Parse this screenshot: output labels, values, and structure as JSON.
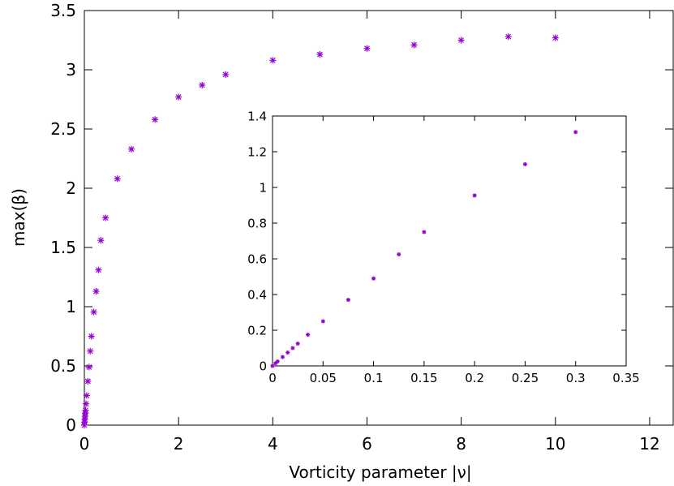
{
  "chart_data": [
    {
      "type": "scatter",
      "title": "",
      "xlabel": "Vorticity parameter |ν|",
      "ylabel": "max(β)",
      "xlim": [
        0,
        12.5
      ],
      "ylim": [
        0,
        3.5
      ],
      "xticks": [
        "0",
        "2",
        "4",
        "6",
        "8",
        "10",
        "12"
      ],
      "yticks": [
        "0",
        "0.5",
        "1",
        "1.5",
        "2",
        "2.5",
        "3",
        "3.5"
      ],
      "marker": "asterisk",
      "color": "#9400d3",
      "grid": false,
      "series": [
        {
          "x": [
            0,
            0.005,
            0.01,
            0.015,
            0.02,
            0.025,
            0.035,
            0.05,
            0.075,
            0.1,
            0.125,
            0.15,
            0.2,
            0.25,
            0.3,
            0.35,
            0.45,
            0.7,
            1.0,
            1.5,
            2.0,
            2.5,
            3.0,
            4.0,
            5.0,
            6.0,
            7.0,
            8.0,
            9.0,
            10.0
          ],
          "y": [
            0.0,
            0.025,
            0.05,
            0.075,
            0.1,
            0.125,
            0.18,
            0.25,
            0.37,
            0.49,
            0.625,
            0.75,
            0.955,
            1.13,
            1.31,
            1.56,
            1.75,
            2.08,
            2.33,
            2.58,
            2.77,
            2.87,
            2.96,
            3.08,
            3.13,
            3.18,
            3.21,
            3.25,
            3.28,
            3.27
          ]
        }
      ]
    },
    {
      "type": "scatter",
      "title": "",
      "xlabel": "",
      "ylabel": "",
      "xlim": [
        0,
        0.35
      ],
      "ylim": [
        0,
        1.4
      ],
      "xticks": [
        "0",
        "0.05",
        "0.1",
        "0.15",
        "0.2",
        "0.25",
        "0.3",
        "0.35"
      ],
      "yticks": [
        "0",
        "0.2",
        "0.4",
        "0.6",
        "0.8",
        "1",
        "1.2",
        "1.4"
      ],
      "marker": "asterisk",
      "color": "#9400d3",
      "grid": false,
      "series": [
        {
          "x": [
            0,
            0.003,
            0.005,
            0.01,
            0.015,
            0.02,
            0.025,
            0.035,
            0.05,
            0.075,
            0.1,
            0.125,
            0.15,
            0.2,
            0.25,
            0.3
          ],
          "y": [
            0.0,
            0.015,
            0.025,
            0.05,
            0.075,
            0.1,
            0.125,
            0.175,
            0.25,
            0.37,
            0.49,
            0.625,
            0.75,
            0.955,
            1.13,
            1.31
          ]
        }
      ]
    }
  ]
}
